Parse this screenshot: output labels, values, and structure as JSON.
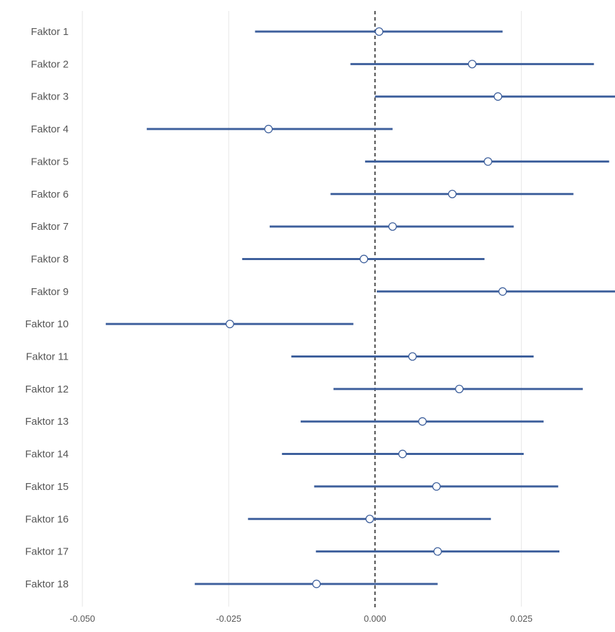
{
  "chart_data": {
    "type": "forest",
    "title": "",
    "xlabel": "",
    "ylabel": "",
    "xlim": [
      -0.05,
      0.041
    ],
    "reference_x": 0.0,
    "x_ticks": [
      {
        "value": -0.05,
        "label": "-0.050"
      },
      {
        "value": -0.025,
        "label": "-0.025"
      },
      {
        "value": 0.0,
        "label": "0.000"
      },
      {
        "value": 0.025,
        "label": "0.025"
      }
    ],
    "grid": "vertical",
    "colors": {
      "interval": "#3d5f9c",
      "point_fill": "#ffffff",
      "point_stroke": "#3d5f9c",
      "reference": "#222222",
      "grid": "#e6e6e6"
    },
    "categories": [
      "Faktor 1",
      "Faktor 2",
      "Faktor 3",
      "Faktor 4",
      "Faktor 5",
      "Faktor 6",
      "Faktor 7",
      "Faktor 8",
      "Faktor 9",
      "Faktor 10",
      "Faktor 11",
      "Faktor 12",
      "Faktor 13",
      "Faktor 14",
      "Faktor 15",
      "Faktor 16",
      "Faktor 17",
      "Faktor 18"
    ],
    "estimates": [
      0.0007,
      0.0166,
      0.021,
      -0.0182,
      0.0193,
      0.0132,
      0.003,
      -0.0019,
      0.0218,
      -0.0248,
      0.0064,
      0.0144,
      0.0081,
      0.0047,
      0.0105,
      -0.0009,
      0.0107,
      -0.01
    ],
    "lower": [
      -0.0205,
      -0.0042,
      0.0,
      -0.039,
      -0.0017,
      -0.0076,
      -0.018,
      -0.0227,
      0.0003,
      -0.046,
      -0.0143,
      -0.0071,
      -0.0127,
      -0.0159,
      -0.0104,
      -0.0217,
      -0.0101,
      -0.0308
    ],
    "upper": [
      0.0218,
      0.0374,
      0.0415,
      0.003,
      0.04,
      0.0339,
      0.0237,
      0.0187,
      0.0415,
      -0.0037,
      0.0271,
      0.0355,
      0.0288,
      0.0254,
      0.0313,
      0.0198,
      0.0315,
      0.0107
    ]
  }
}
